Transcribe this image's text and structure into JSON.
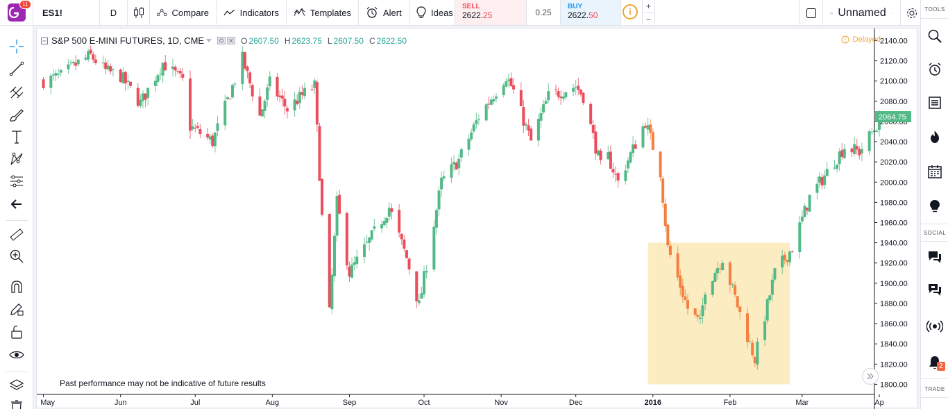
{
  "header": {
    "logo_badge": "11",
    "symbol": "ES1!",
    "interval": "D",
    "compare_label": "Compare",
    "indicators_label": "Indicators",
    "templates_label": "Templates",
    "alert_label": "Alert",
    "ideas_label": "Ideas",
    "layout_name": "Unnamed"
  },
  "trade": {
    "sell_label": "SELL",
    "sell_price_main": "2622.",
    "sell_price_end": "25",
    "spread": "0.25",
    "buy_label": "BUY",
    "buy_price_main": "2622.",
    "buy_price_end": "50",
    "info_symbol": "i",
    "plus": "+",
    "minus": "−"
  },
  "legend": {
    "title": "S&P 500 E-MINI FUTURES, 1D, CME",
    "o_label": "O",
    "o_value": "2607.50",
    "h_label": "H",
    "h_value": "2623.75",
    "l_label": "L",
    "l_value": "2607.50",
    "c_label": "C",
    "c_value": "2622.50",
    "delayed": "Delayed"
  },
  "disclaimer": "Past performance may not be indicative of future results",
  "right_panel": {
    "tools_label": "TOOLS",
    "social_label": "SOCIAL",
    "trade_label": "TRADE",
    "notification_count": "2"
  },
  "colors": {
    "up": "#53b987",
    "down": "#eb4d5c",
    "highlight_down": "#f57f3f",
    "highlight_fill": "#fbe9b7",
    "last_price_tag": "#53b987"
  },
  "chart_data": {
    "type": "candlestick",
    "title": "S&P 500 E-MINI FUTURES, 1D, CME",
    "x_ticks": [
      "May",
      "Jun",
      "Jul",
      "Aug",
      "Sep",
      "Oct",
      "Nov",
      "Dec",
      "2016",
      "Feb",
      "Mar",
      "Ap"
    ],
    "y_ticks": [
      2140,
      2120,
      2100,
      2080,
      2060,
      2040,
      2020,
      2000,
      1980,
      1960,
      1940,
      1920,
      1900,
      1880,
      1860,
      1840,
      1820,
      1800
    ],
    "ylim": [
      1790,
      2152
    ],
    "last_price": "2064.75",
    "highlight_box": {
      "x_from": "2015-12-30",
      "x_to": "2016-02-25",
      "y_from": 1800,
      "y_to": 1940
    },
    "grid": false,
    "anchors": [
      [
        "2015-05-01",
        2100
      ],
      [
        "2015-05-08",
        2105
      ],
      [
        "2015-05-15",
        2118
      ],
      [
        "2015-05-20",
        2125
      ],
      [
        "2015-05-26",
        2110
      ],
      [
        "2015-06-01",
        2105
      ],
      [
        "2015-06-09",
        2078
      ],
      [
        "2015-06-18",
        2118
      ],
      [
        "2015-06-26",
        2100
      ],
      [
        "2015-06-29",
        2055
      ],
      [
        "2015-07-08",
        2040
      ],
      [
        "2015-07-20",
        2122
      ],
      [
        "2015-07-27",
        2065
      ],
      [
        "2015-07-31",
        2098
      ],
      [
        "2015-08-07",
        2072
      ],
      [
        "2015-08-14",
        2088
      ],
      [
        "2015-08-18",
        2095
      ],
      [
        "2015-08-21",
        1965
      ],
      [
        "2015-08-24",
        1870
      ],
      [
        "2015-08-27",
        1980
      ],
      [
        "2015-09-01",
        1910
      ],
      [
        "2015-09-11",
        1950
      ],
      [
        "2015-09-17",
        1975
      ],
      [
        "2015-09-24",
        1925
      ],
      [
        "2015-09-29",
        1878
      ],
      [
        "2015-10-08",
        2000
      ],
      [
        "2015-10-15",
        2022
      ],
      [
        "2015-10-23",
        2065
      ],
      [
        "2015-11-03",
        2105
      ],
      [
        "2015-11-06",
        2090
      ],
      [
        "2015-11-13",
        2040
      ],
      [
        "2015-11-20",
        2085
      ],
      [
        "2015-12-01",
        2095
      ],
      [
        "2015-12-04",
        2085
      ],
      [
        "2015-12-11",
        2015
      ],
      [
        "2015-12-14",
        2025
      ],
      [
        "2015-12-18",
        2000
      ],
      [
        "2015-12-29",
        2060
      ],
      [
        "2016-01-04",
        2010
      ],
      [
        "2016-01-07",
        1935
      ],
      [
        "2016-01-15",
        1875
      ],
      [
        "2016-01-20",
        1860
      ],
      [
        "2016-01-22",
        1895
      ],
      [
        "2016-01-29",
        1925
      ],
      [
        "2016-02-05",
        1870
      ],
      [
        "2016-02-11",
        1825
      ],
      [
        "2016-02-19",
        1910
      ],
      [
        "2016-02-26",
        1935
      ],
      [
        "2016-03-04",
        1985
      ],
      [
        "2016-03-11",
        2010
      ],
      [
        "2016-03-18",
        2035
      ],
      [
        "2016-03-24",
        2030
      ],
      [
        "2016-04-01",
        2060
      ]
    ]
  }
}
